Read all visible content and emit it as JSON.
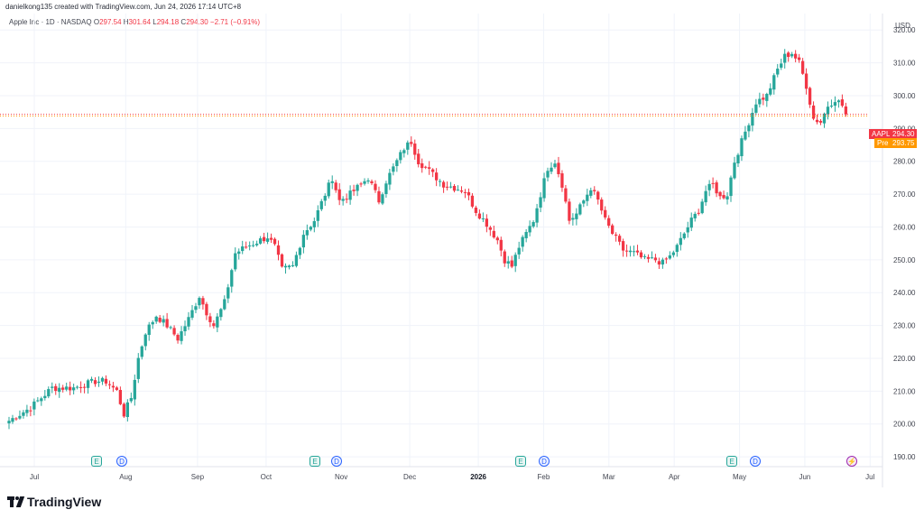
{
  "header": {
    "text": "danielkong135 created with TradingView.com, Jun 24, 2026 17:14 UTC+8"
  },
  "legend": {
    "symbol": "Apple Inc · 1D · NASDAQ",
    "o_label": "O",
    "o": "297.54",
    "h_label": "H",
    "h": "301.64",
    "l_label": "L",
    "l": "294.18",
    "c_label": "C",
    "c": "294.30",
    "change": "−2.71 (−0.91%)"
  },
  "currency": "USD",
  "price_tags": {
    "symbol": "AAPL",
    "last": "294.30",
    "pre_label": "Pre",
    "pre": "293.75"
  },
  "footer": {
    "brand": "TradingView"
  },
  "events": [
    {
      "kind": "E",
      "label": "E",
      "month_pos": "Aug-early"
    },
    {
      "kind": "D",
      "label": "D",
      "month_pos": "Aug-early"
    },
    {
      "kind": "E",
      "label": "E",
      "month_pos": "Oct-end"
    },
    {
      "kind": "D",
      "label": "D",
      "month_pos": "Nov-early"
    },
    {
      "kind": "E",
      "label": "E",
      "month_pos": "Jan-end"
    },
    {
      "kind": "D",
      "label": "D",
      "month_pos": "Feb-early"
    },
    {
      "kind": "E",
      "label": "E",
      "month_pos": "Apr-end"
    },
    {
      "kind": "D",
      "label": "D",
      "month_pos": "May-early"
    },
    {
      "kind": "S",
      "label": "⚡",
      "month_pos": "Jun-end"
    }
  ],
  "colors": {
    "up": "#26a69a",
    "down": "#f23645",
    "grid": "#f0f3fa",
    "text": "#434651",
    "pre": "#ff9800"
  },
  "chart_data": {
    "type": "candlestick",
    "title": "Apple Inc · 1D · NASDAQ",
    "ylabel": "USD",
    "ylim": [
      187,
      325
    ],
    "yticks": [
      190,
      200,
      210,
      220,
      230,
      240,
      250,
      260,
      270,
      280,
      290,
      300,
      310,
      320
    ],
    "xticks": [
      {
        "label": "Jul",
        "bold": false
      },
      {
        "label": "Aug",
        "bold": false
      },
      {
        "label": "Sep",
        "bold": false
      },
      {
        "label": "Oct",
        "bold": false
      },
      {
        "label": "Nov",
        "bold": false
      },
      {
        "label": "Dec",
        "bold": false
      },
      {
        "label": "2026",
        "bold": true
      },
      {
        "label": "Feb",
        "bold": false
      },
      {
        "label": "Mar",
        "bold": false
      },
      {
        "label": "Apr",
        "bold": false
      },
      {
        "label": "May",
        "bold": false
      },
      {
        "label": "Jun",
        "bold": false
      },
      {
        "label": "Jul",
        "bold": false
      }
    ],
    "last_price": 294.3,
    "pre_price": 293.75,
    "close_waypoints": [
      [
        0,
        201
      ],
      [
        6,
        205
      ],
      [
        12,
        211
      ],
      [
        18,
        211
      ],
      [
        24,
        213
      ],
      [
        27,
        213
      ],
      [
        30,
        210
      ],
      [
        32,
        203
      ],
      [
        34,
        208
      ],
      [
        36,
        220
      ],
      [
        38,
        228
      ],
      [
        41,
        233
      ],
      [
        44,
        230
      ],
      [
        47,
        226
      ],
      [
        50,
        232
      ],
      [
        53,
        239
      ],
      [
        55,
        234
      ],
      [
        57,
        230
      ],
      [
        60,
        237
      ],
      [
        63,
        252
      ],
      [
        66,
        254
      ],
      [
        70,
        256
      ],
      [
        72,
        257
      ],
      [
        74,
        254
      ],
      [
        76,
        247
      ],
      [
        79,
        248
      ],
      [
        82,
        258
      ],
      [
        85,
        262
      ],
      [
        88,
        270
      ],
      [
        90,
        275
      ],
      [
        92,
        268
      ],
      [
        95,
        270
      ],
      [
        98,
        273
      ],
      [
        100,
        275
      ],
      [
        103,
        268
      ],
      [
        105,
        274
      ],
      [
        108,
        280
      ],
      [
        110,
        284
      ],
      [
        112,
        286
      ],
      [
        114,
        280
      ],
      [
        116,
        278
      ],
      [
        118,
        276
      ],
      [
        121,
        273
      ],
      [
        124,
        272
      ],
      [
        127,
        271
      ],
      [
        130,
        265
      ],
      [
        133,
        261
      ],
      [
        136,
        256
      ],
      [
        138,
        250
      ],
      [
        140,
        248
      ],
      [
        142,
        254
      ],
      [
        144,
        258
      ],
      [
        146,
        262
      ],
      [
        148,
        270
      ],
      [
        150,
        278
      ],
      [
        152,
        280
      ],
      [
        154,
        273
      ],
      [
        156,
        262
      ],
      [
        158,
        264
      ],
      [
        160,
        268
      ],
      [
        162,
        272
      ],
      [
        164,
        268
      ],
      [
        166,
        262
      ],
      [
        168,
        258
      ],
      [
        171,
        253
      ],
      [
        174,
        252
      ],
      [
        177,
        250
      ],
      [
        180,
        250
      ],
      [
        182,
        249
      ],
      [
        184,
        251
      ],
      [
        186,
        254
      ],
      [
        188,
        258
      ],
      [
        190,
        262
      ],
      [
        192,
        265
      ],
      [
        194,
        271
      ],
      [
        196,
        273
      ],
      [
        198,
        269
      ],
      [
        200,
        270
      ],
      [
        202,
        280
      ],
      [
        204,
        286
      ],
      [
        206,
        292
      ],
      [
        208,
        298
      ],
      [
        211,
        300
      ],
      [
        214,
        308
      ],
      [
        216,
        312
      ],
      [
        218,
        313
      ],
      [
        220,
        310
      ],
      [
        222,
        303
      ],
      [
        224,
        293
      ],
      [
        226,
        292
      ],
      [
        228,
        297
      ],
      [
        230,
        299
      ],
      [
        232,
        297
      ],
      [
        233,
        294.3
      ]
    ],
    "x_months": [
      {
        "label": "Jul",
        "bar": 0
      },
      {
        "label": "Aug",
        "bar": 28
      },
      {
        "label": "Sep",
        "bar": 50
      },
      {
        "label": "Oct",
        "bar": 71
      },
      {
        "label": "Nov",
        "bar": 94
      },
      {
        "label": "Dec",
        "bar": 115
      },
      {
        "label": "2026",
        "bar": 136
      },
      {
        "label": "Feb",
        "bar": 156
      },
      {
        "label": "Mar",
        "bar": 176
      },
      {
        "label": "Apr",
        "bar": 196
      },
      {
        "label": "May",
        "bar": 216
      },
      {
        "label": "Jun",
        "bar": 236
      },
      {
        "label": "Jul",
        "bar": 256
      }
    ]
  }
}
